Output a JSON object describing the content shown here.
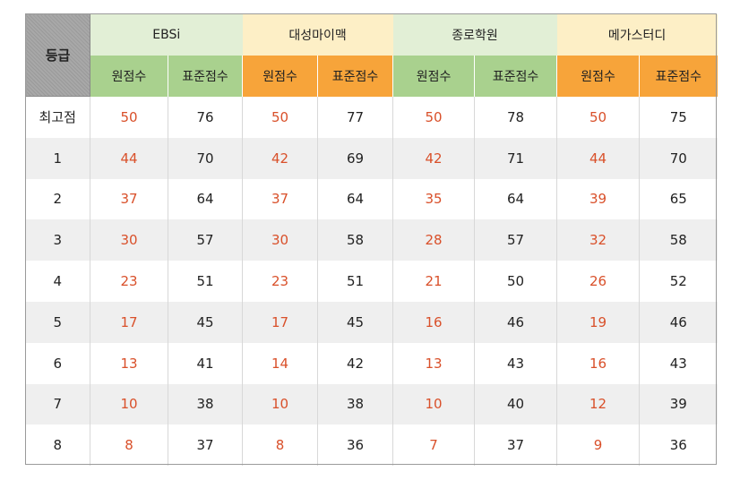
{
  "table": {
    "grade_label": "등급",
    "academies": [
      {
        "name": "EBSi",
        "raw_label": "원점수",
        "std_label": "표준점수"
      },
      {
        "name": "대성마이맥",
        "raw_label": "원점수",
        "std_label": "표준점수"
      },
      {
        "name": "종로학원",
        "raw_label": "원점수",
        "std_label": "표준점수"
      },
      {
        "name": "메가스터디",
        "raw_label": "원점수",
        "std_label": "표준점수"
      }
    ],
    "rows": [
      {
        "grade": "최고점",
        "cells": [
          "50",
          "76",
          "50",
          "77",
          "50",
          "78",
          "50",
          "75"
        ]
      },
      {
        "grade": "1",
        "cells": [
          "44",
          "70",
          "42",
          "69",
          "42",
          "71",
          "44",
          "70"
        ]
      },
      {
        "grade": "2",
        "cells": [
          "37",
          "64",
          "37",
          "64",
          "35",
          "64",
          "39",
          "65"
        ]
      },
      {
        "grade": "3",
        "cells": [
          "30",
          "57",
          "30",
          "58",
          "28",
          "57",
          "32",
          "58"
        ]
      },
      {
        "grade": "4",
        "cells": [
          "23",
          "51",
          "23",
          "51",
          "21",
          "50",
          "26",
          "52"
        ]
      },
      {
        "grade": "5",
        "cells": [
          "17",
          "45",
          "17",
          "45",
          "16",
          "46",
          "19",
          "46"
        ]
      },
      {
        "grade": "6",
        "cells": [
          "13",
          "41",
          "14",
          "42",
          "13",
          "43",
          "16",
          "43"
        ]
      },
      {
        "grade": "7",
        "cells": [
          "10",
          "38",
          "10",
          "38",
          "10",
          "40",
          "12",
          "39"
        ]
      },
      {
        "grade": "8",
        "cells": [
          "8",
          "37",
          "8",
          "36",
          "7",
          "37",
          "9",
          "36"
        ]
      }
    ]
  },
  "colors": {
    "raw_text": "#d9502a",
    "header_green_light": "#e2efd6",
    "header_yellow_light": "#fdefc6",
    "sub_green": "#a9d18e",
    "sub_orange": "#f7a43a",
    "stripe_gray": "#efefef"
  }
}
